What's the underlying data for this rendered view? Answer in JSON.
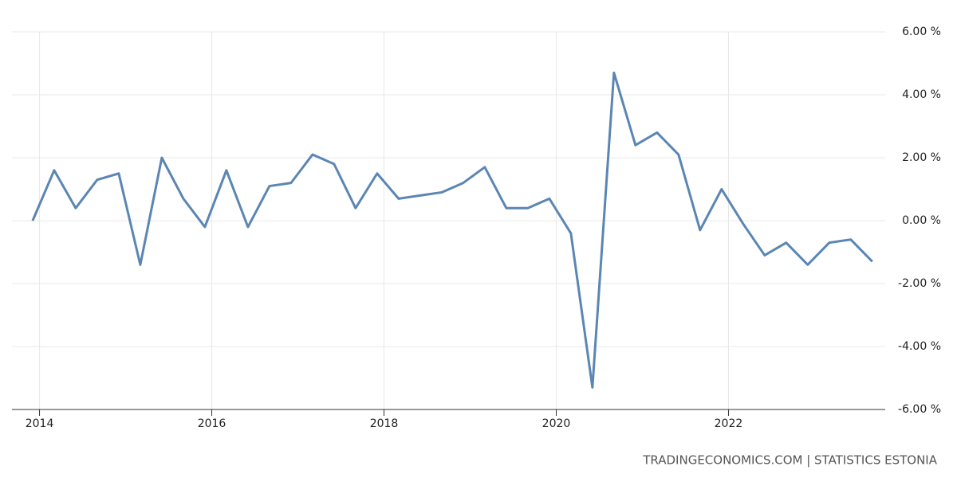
{
  "chart_data": {
    "type": "line",
    "source": "TRADINGECONOMICS.COM | STATISTICS ESTONIA",
    "x": [
      2013.92,
      2014.17,
      2014.42,
      2014.67,
      2014.92,
      2015.17,
      2015.42,
      2015.67,
      2015.92,
      2016.17,
      2016.42,
      2016.67,
      2016.92,
      2017.17,
      2017.42,
      2017.67,
      2017.92,
      2018.17,
      2018.42,
      2018.67,
      2018.92,
      2019.17,
      2019.42,
      2019.67,
      2019.92,
      2020.17,
      2020.42,
      2020.67,
      2020.92,
      2021.17,
      2021.42,
      2021.67,
      2021.92,
      2022.17,
      2022.42,
      2022.67,
      2022.92,
      2023.17,
      2023.42,
      2023.67
    ],
    "series": [
      {
        "color": "#5b86b3",
        "values": [
          0.0,
          1.6,
          0.4,
          1.3,
          1.5,
          -1.4,
          2.0,
          0.7,
          -0.2,
          1.6,
          -0.2,
          1.1,
          1.2,
          2.1,
          1.8,
          0.4,
          1.5,
          0.7,
          0.8,
          0.9,
          1.2,
          1.7,
          0.4,
          0.4,
          0.7,
          -0.4,
          -5.3,
          4.7,
          2.4,
          2.8,
          2.1,
          -0.3,
          1.0,
          -0.1,
          -1.1,
          -0.7,
          -1.4,
          -0.7,
          -0.6,
          -1.3
        ]
      }
    ],
    "xlim": [
      2013.68,
      2023.82
    ],
    "xticks": [
      2014,
      2016,
      2018,
      2020,
      2022
    ],
    "ylim": [
      -6,
      6
    ],
    "yticks": [
      {
        "value": -6,
        "label": "-6.00 %"
      },
      {
        "value": -4,
        "label": "-4.00 %"
      },
      {
        "value": -2,
        "label": "-2.00 %"
      },
      {
        "value": 0,
        "label": "0.00 %"
      },
      {
        "value": 2,
        "label": "2.00 %"
      },
      {
        "value": 4,
        "label": "4.00 %"
      },
      {
        "value": 6,
        "label": "6.00 %"
      }
    ],
    "grid": true
  }
}
